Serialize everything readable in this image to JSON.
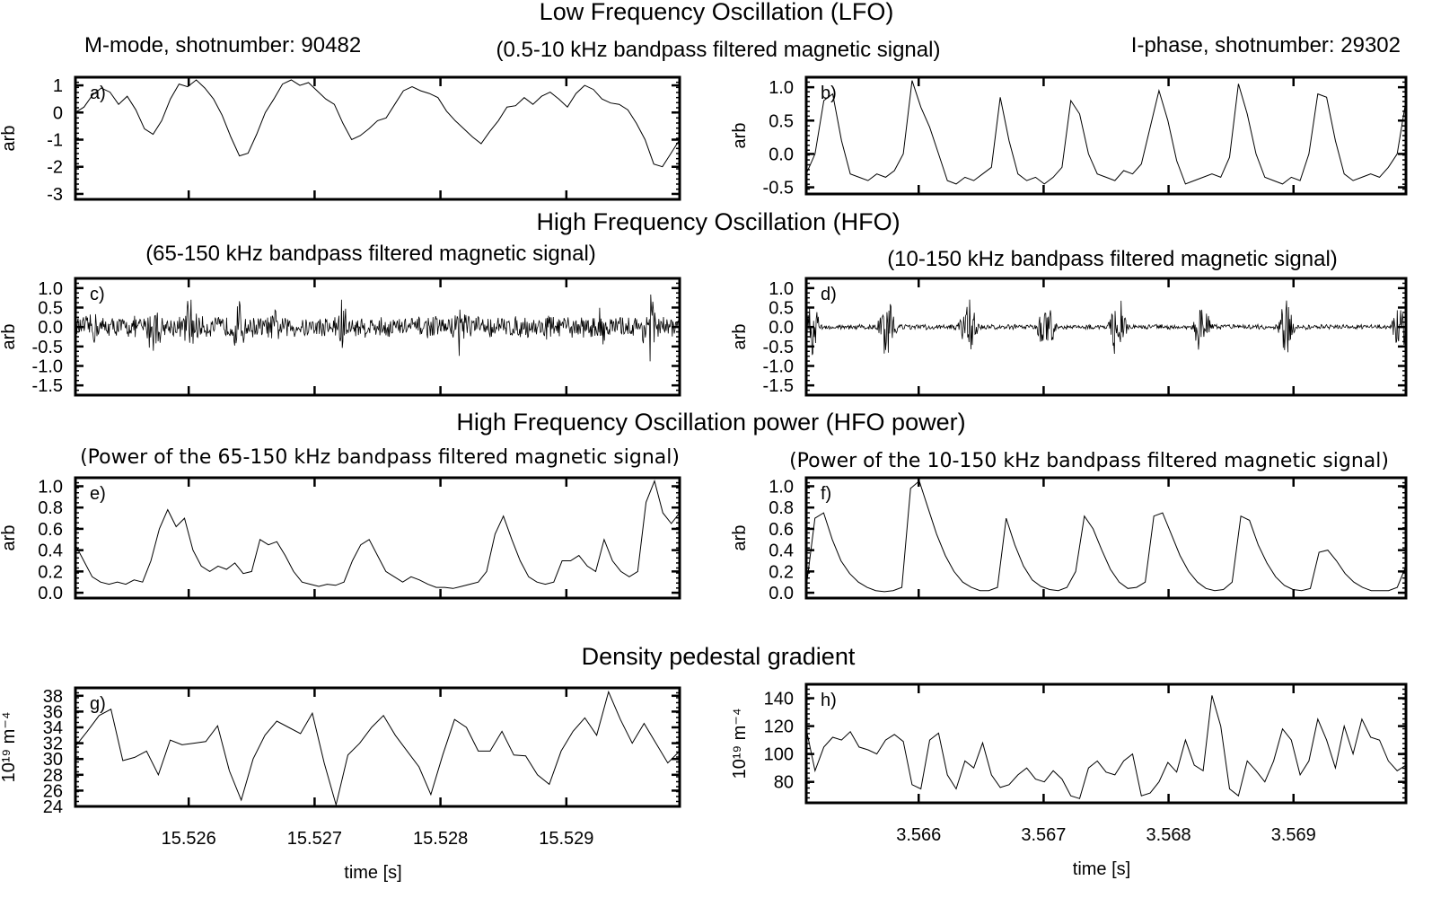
{
  "headings": {
    "lfo": "Low Frequency Oscillation (LFO)",
    "lfo_sub": "(0.5-10 kHz bandpass filtered magnetic signal)",
    "left_shot": "M-mode, shotnumber: 90482",
    "right_shot": "I-phase, shotnumber: 29302",
    "hfo": "High Frequency Oscillation (HFO)",
    "hfo_left": "(65-150 kHz bandpass filtered magnetic signal)",
    "hfo_right": "(10-150 kHz bandpass filtered magnetic signal)",
    "hfop": "High Frequency Oscillation power (HFO power)",
    "hfop_left": "(Power of the 65-150 kHz bandpass filtered magnetic signal)",
    "hfop_right": "(Power of the 10-150 kHz bandpass filtered magnetic signal)",
    "dens": "Density pedestal gradient"
  },
  "chart_data": [
    {
      "id": "a",
      "type": "line",
      "panel_label": "a)",
      "ylabel": "arb",
      "yticks": [
        "1",
        "0",
        "-1",
        "-2",
        "-3"
      ],
      "ylim": [
        -3.2,
        1.3
      ],
      "xlim": [
        15.5251,
        15.5299
      ],
      "x_start": 15.5251,
      "x_end": 15.5299,
      "values": [
        0.0,
        0.2,
        0.65,
        0.9,
        0.75,
        0.3,
        0.6,
        0.1,
        -0.6,
        -0.8,
        -0.3,
        0.5,
        1.05,
        0.95,
        1.2,
        0.9,
        0.5,
        -0.1,
        -0.9,
        -1.6,
        -1.5,
        -0.8,
        0.0,
        0.5,
        1.05,
        1.2,
        1.0,
        1.1,
        0.8,
        0.5,
        0.3,
        -0.4,
        -1.0,
        -0.85,
        -0.6,
        -0.3,
        -0.2,
        0.3,
        0.8,
        0.95,
        0.8,
        0.7,
        0.55,
        0.05,
        -0.3,
        -0.6,
        -0.9,
        -1.15,
        -0.7,
        -0.3,
        0.2,
        0.25,
        0.55,
        0.3,
        0.6,
        0.75,
        0.5,
        0.2,
        0.7,
        1.0,
        0.85,
        0.5,
        0.35,
        0.3,
        0.1,
        -0.4,
        -1.0,
        -1.9,
        -2.0,
        -1.5,
        -1.0
      ]
    },
    {
      "id": "b",
      "type": "line",
      "panel_label": "b)",
      "ylabel": "arb",
      "yticks": [
        "1.0",
        "0.5",
        "0.0",
        "-0.5"
      ],
      "ylim": [
        -0.6,
        1.15
      ],
      "xlim": [
        3.5651,
        3.5699
      ],
      "x_start": 3.5651,
      "x_end": 3.5699,
      "values": [
        -0.3,
        0.0,
        0.8,
        0.9,
        0.2,
        -0.3,
        -0.35,
        -0.4,
        -0.3,
        -0.35,
        -0.25,
        0.0,
        1.1,
        0.7,
        0.4,
        0.0,
        -0.4,
        -0.45,
        -0.35,
        -0.4,
        -0.3,
        -0.2,
        0.85,
        0.2,
        -0.3,
        -0.4,
        -0.35,
        -0.45,
        -0.35,
        -0.2,
        0.8,
        0.6,
        0.0,
        -0.3,
        -0.35,
        -0.4,
        -0.25,
        -0.3,
        -0.15,
        0.4,
        0.95,
        0.5,
        -0.1,
        -0.45,
        -0.4,
        -0.35,
        -0.3,
        -0.35,
        -0.05,
        1.05,
        0.6,
        0.0,
        -0.35,
        -0.4,
        -0.45,
        -0.35,
        -0.4,
        0.0,
        0.9,
        0.85,
        0.2,
        -0.3,
        -0.4,
        -0.35,
        -0.3,
        -0.35,
        -0.2,
        0.0,
        0.8
      ]
    },
    {
      "id": "c",
      "type": "line",
      "panel_label": "c)",
      "ylabel": "arb",
      "yticks": [
        "1.0",
        "0.5",
        "0.0",
        "-0.5",
        "-1.0",
        "-1.5"
      ],
      "ylim": [
        -1.75,
        1.25
      ],
      "xlim": [
        15.5251,
        15.5299
      ],
      "x_start": 15.5251,
      "x_end": 15.5299,
      "bursts": [
        [
          0.03,
          0.55
        ],
        [
          0.13,
          0.9
        ],
        [
          0.19,
          0.95
        ],
        [
          0.27,
          0.8
        ],
        [
          0.33,
          0.5
        ],
        [
          0.44,
          0.9
        ],
        [
          0.64,
          0.95
        ],
        [
          0.78,
          0.5
        ],
        [
          0.87,
          0.6
        ],
        [
          0.95,
          1.15
        ]
      ],
      "noise_level": 0.3
    },
    {
      "id": "d",
      "type": "line",
      "panel_label": "d)",
      "ylabel": "arb",
      "yticks": [
        "1.0",
        "0.5",
        "0.0",
        "-0.5",
        "-1.0",
        "-1.5"
      ],
      "ylim": [
        -1.75,
        1.25
      ],
      "xlim": [
        3.5651,
        3.5699
      ],
      "x_start": 3.5651,
      "x_end": 3.5699,
      "bursts": [
        [
          0.01,
          0.9
        ],
        [
          0.135,
          1.05
        ],
        [
          0.27,
          0.9
        ],
        [
          0.4,
          0.9
        ],
        [
          0.52,
          1.0
        ],
        [
          0.66,
          0.85
        ],
        [
          0.8,
          0.9
        ],
        [
          0.99,
          0.7
        ]
      ],
      "noise_level": 0.07
    },
    {
      "id": "e",
      "type": "line",
      "panel_label": "e)",
      "ylabel": "arb",
      "yticks": [
        "1.0",
        "0.8",
        "0.6",
        "0.4",
        "0.2",
        "0.0"
      ],
      "ylim": [
        -0.05,
        1.08
      ],
      "xlim": [
        15.5251,
        15.5299
      ],
      "x_start": 15.5251,
      "x_end": 15.5299,
      "values": [
        0.45,
        0.3,
        0.15,
        0.1,
        0.08,
        0.1,
        0.08,
        0.12,
        0.1,
        0.3,
        0.6,
        0.78,
        0.62,
        0.7,
        0.4,
        0.25,
        0.2,
        0.25,
        0.22,
        0.28,
        0.18,
        0.2,
        0.5,
        0.45,
        0.48,
        0.35,
        0.2,
        0.1,
        0.08,
        0.06,
        0.08,
        0.07,
        0.1,
        0.3,
        0.45,
        0.5,
        0.35,
        0.2,
        0.15,
        0.1,
        0.15,
        0.12,
        0.08,
        0.05,
        0.05,
        0.04,
        0.06,
        0.08,
        0.1,
        0.2,
        0.55,
        0.72,
        0.5,
        0.3,
        0.15,
        0.1,
        0.08,
        0.1,
        0.3,
        0.3,
        0.35,
        0.25,
        0.2,
        0.5,
        0.3,
        0.2,
        0.15,
        0.2,
        0.85,
        1.05,
        0.75,
        0.65,
        0.75
      ]
    },
    {
      "id": "f",
      "type": "line",
      "panel_label": "f)",
      "ylabel": "arb",
      "yticks": [
        "1.0",
        "0.8",
        "0.6",
        "0.4",
        "0.2",
        "0.0"
      ],
      "ylim": [
        -0.05,
        1.08
      ],
      "xlim": [
        3.5651,
        3.5699
      ],
      "x_start": 3.5651,
      "x_end": 3.5699,
      "values": [
        0.05,
        0.7,
        0.75,
        0.5,
        0.3,
        0.18,
        0.1,
        0.05,
        0.02,
        0.01,
        0.02,
        0.05,
        0.98,
        1.05,
        0.8,
        0.55,
        0.35,
        0.2,
        0.1,
        0.05,
        0.02,
        0.02,
        0.05,
        0.7,
        0.45,
        0.25,
        0.12,
        0.06,
        0.03,
        0.02,
        0.05,
        0.2,
        0.72,
        0.6,
        0.4,
        0.22,
        0.1,
        0.04,
        0.05,
        0.1,
        0.72,
        0.75,
        0.55,
        0.35,
        0.2,
        0.1,
        0.04,
        0.02,
        0.03,
        0.1,
        0.72,
        0.68,
        0.45,
        0.28,
        0.15,
        0.07,
        0.03,
        0.02,
        0.04,
        0.38,
        0.4,
        0.3,
        0.18,
        0.1,
        0.05,
        0.02,
        0.02,
        0.02,
        0.05,
        0.25
      ]
    },
    {
      "id": "g",
      "type": "line",
      "panel_label": "g)",
      "ylabel": "10¹⁹ m⁻⁴",
      "yticks": [
        "38",
        "36",
        "34",
        "32",
        "30",
        "28",
        "26",
        "24"
      ],
      "ylim": [
        24,
        39
      ],
      "xlim": [
        15.5251,
        15.5299
      ],
      "xticks": [
        "15.526",
        "15.527",
        "15.528",
        "15.529"
      ],
      "xlabel": "time [s]",
      "x_start": 15.5251,
      "x_end": 15.5299,
      "values": [
        31.6,
        33.5,
        35.5,
        36.3,
        29.8,
        30.2,
        31,
        28,
        32.4,
        31.8,
        32,
        32.2,
        34.2,
        28.5,
        24.8,
        30,
        33,
        34.8,
        34,
        33.2,
        35.8,
        29.5,
        24.2,
        30.5,
        32,
        34,
        35.5,
        33,
        31,
        29,
        25.5,
        30.5,
        35,
        34,
        31,
        31,
        33.5,
        30.5,
        30.4,
        28,
        26.8,
        31,
        33.5,
        35.2,
        33,
        38.5,
        35,
        32,
        34.5,
        32,
        29.5,
        31
      ]
    },
    {
      "id": "h",
      "type": "line",
      "panel_label": "h)",
      "ylabel": "10¹⁹ m⁻⁴",
      "yticks": [
        "140",
        "120",
        "100",
        "80"
      ],
      "ylim": [
        65,
        150
      ],
      "xlim": [
        3.5651,
        3.5699
      ],
      "xticks": [
        "3.566",
        "3.567",
        "3.568",
        "3.569"
      ],
      "xlabel": "time [s]",
      "x_start": 3.5651,
      "x_end": 3.5699,
      "values": [
        118,
        88,
        105,
        112,
        110,
        116,
        105,
        103,
        100,
        110,
        114,
        109,
        78,
        75,
        110,
        115,
        85,
        75,
        95,
        90,
        108,
        85,
        76,
        78,
        85,
        90,
        82,
        80,
        88,
        82,
        70,
        68,
        90,
        95,
        87,
        85,
        95,
        100,
        70,
        72,
        80,
        94,
        87,
        110,
        92,
        88,
        142,
        120,
        75,
        70,
        95,
        88,
        80,
        95,
        118,
        110,
        85,
        95,
        125,
        110,
        90,
        120,
        100,
        125,
        112,
        110,
        95,
        88,
        92
      ]
    }
  ]
}
